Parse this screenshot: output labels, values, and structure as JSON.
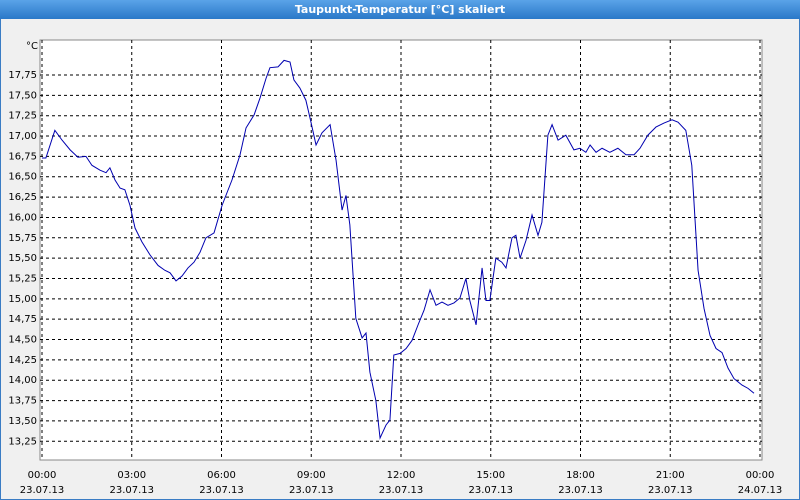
{
  "chart_data": {
    "type": "line",
    "title": "Taupunkt-Temperatur [°C] skaliert",
    "y_unit": "°C",
    "x": [
      0,
      0.13,
      0.43,
      0.67,
      0.94,
      1.2,
      1.47,
      1.67,
      1.94,
      2.14,
      2.27,
      2.44,
      2.61,
      2.77,
      2.94,
      3.11,
      3.34,
      3.61,
      3.88,
      4.11,
      4.28,
      4.48,
      4.68,
      4.88,
      5.08,
      5.28,
      5.48,
      5.75,
      6.02,
      6.35,
      6.62,
      6.82,
      7.09,
      7.29,
      7.49,
      7.62,
      7.89,
      8.09,
      8.29,
      8.42,
      8.62,
      8.82,
      8.96,
      9.16,
      9.36,
      9.63,
      9.83,
      10.03,
      10.16,
      10.29,
      10.49,
      10.7,
      10.83,
      10.96,
      11.16,
      11.3,
      11.5,
      11.63,
      11.76,
      11.97,
      12.17,
      12.37,
      12.57,
      12.77,
      12.97,
      13.17,
      13.37,
      13.57,
      13.77,
      13.97,
      14.17,
      14.3,
      14.51,
      14.71,
      14.84,
      14.97,
      15.17,
      15.37,
      15.51,
      15.71,
      15.84,
      15.98,
      16.18,
      16.38,
      16.58,
      16.71,
      16.91,
      17.05,
      17.25,
      17.51,
      17.78,
      17.98,
      18.18,
      18.32,
      18.52,
      18.72,
      18.98,
      19.25,
      19.52,
      19.79,
      19.99,
      20.25,
      20.52,
      20.79,
      21.06,
      21.26,
      21.52,
      21.72,
      21.93,
      22.13,
      22.33,
      22.53,
      22.73,
      22.93,
      23.13,
      23.4,
      23.6,
      23.8
    ],
    "series": [
      {
        "name": "Taupunkt",
        "color": "#0000b0",
        "values": [
          16.73,
          16.73,
          17.07,
          16.95,
          16.83,
          16.74,
          16.75,
          16.64,
          16.58,
          16.55,
          16.61,
          16.46,
          16.36,
          16.34,
          16.15,
          15.87,
          15.7,
          15.54,
          15.41,
          15.35,
          15.32,
          15.22,
          15.28,
          15.38,
          15.45,
          15.57,
          15.75,
          15.81,
          16.15,
          16.46,
          16.77,
          17.1,
          17.26,
          17.47,
          17.71,
          17.84,
          17.85,
          17.93,
          17.91,
          17.69,
          17.59,
          17.44,
          17.22,
          16.89,
          17.04,
          17.14,
          16.7,
          16.09,
          16.27,
          15.91,
          14.76,
          14.52,
          14.58,
          14.1,
          13.75,
          13.29,
          13.45,
          13.51,
          14.31,
          14.33,
          14.39,
          14.49,
          14.68,
          14.86,
          15.11,
          14.92,
          14.96,
          14.92,
          14.95,
          15.01,
          15.25,
          14.98,
          14.68,
          15.38,
          14.98,
          14.98,
          15.5,
          15.45,
          15.38,
          15.75,
          15.78,
          15.5,
          15.72,
          16.03,
          15.78,
          15.94,
          17.01,
          17.14,
          16.95,
          17.01,
          16.83,
          16.85,
          16.8,
          16.89,
          16.8,
          16.85,
          16.8,
          16.85,
          16.77,
          16.77,
          16.85,
          17.01,
          17.11,
          17.16,
          17.2,
          17.17,
          17.07,
          16.64,
          15.35,
          14.88,
          14.55,
          14.39,
          14.34,
          14.15,
          14.02,
          13.94,
          13.9,
          13.84
        ]
      }
    ],
    "xlim": [
      0,
      24
    ],
    "xticks": [
      {
        "value": 0,
        "label": "00:00"
      },
      {
        "value": 3,
        "label": "03:00"
      },
      {
        "value": 6,
        "label": "06:00"
      },
      {
        "value": 9,
        "label": "09:00"
      },
      {
        "value": 12,
        "label": "12:00"
      },
      {
        "value": 15,
        "label": "15:00"
      },
      {
        "value": 18,
        "label": "18:00"
      },
      {
        "value": 21,
        "label": "21:00"
      },
      {
        "value": 24,
        "label": "00:00"
      }
    ],
    "xtick_dates": [
      "23.07.13",
      "23.07.13",
      "23.07.13",
      "23.07.13",
      "23.07.13",
      "23.07.13",
      "23.07.13",
      "23.07.13",
      "24.07.13"
    ],
    "ylim": [
      13.02,
      18.18
    ],
    "yticks": [
      {
        "value": 13.25,
        "label": "13,25"
      },
      {
        "value": 13.5,
        "label": "13,50"
      },
      {
        "value": 13.75,
        "label": "13,75"
      },
      {
        "value": 14,
        "label": "14,00"
      },
      {
        "value": 14.25,
        "label": "14,25"
      },
      {
        "value": 14.5,
        "label": "14,50"
      },
      {
        "value": 14.75,
        "label": "14,75"
      },
      {
        "value": 15,
        "label": "15,00"
      },
      {
        "value": 15.25,
        "label": "15,25"
      },
      {
        "value": 15.5,
        "label": "15,50"
      },
      {
        "value": 15.75,
        "label": "15,75"
      },
      {
        "value": 16,
        "label": "16,00"
      },
      {
        "value": 16.25,
        "label": "16,25"
      },
      {
        "value": 16.5,
        "label": "16,50"
      },
      {
        "value": 16.75,
        "label": "16,75"
      },
      {
        "value": 17,
        "label": "17,00"
      },
      {
        "value": 17.25,
        "label": "17,25"
      },
      {
        "value": 17.5,
        "label": "17,50"
      },
      {
        "value": 17.75,
        "label": "17,75"
      }
    ],
    "grid": true
  }
}
